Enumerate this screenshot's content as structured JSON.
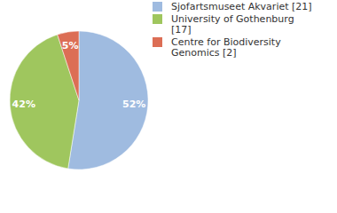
{
  "chart_data": {
    "type": "pie",
    "categories": [
      "Sjofartsmuseet Akvariet [21]",
      "University of Gothenburg [17]",
      "Centre for Biodiversity Genomics [2]"
    ],
    "values": [
      52,
      42,
      5
    ],
    "value_labels": [
      "52%",
      "42%",
      "5%"
    ],
    "colors": [
      "#9fbbe0",
      "#9fc65e",
      "#dc6e55"
    ],
    "data_labels": true,
    "legend": "upper right"
  }
}
